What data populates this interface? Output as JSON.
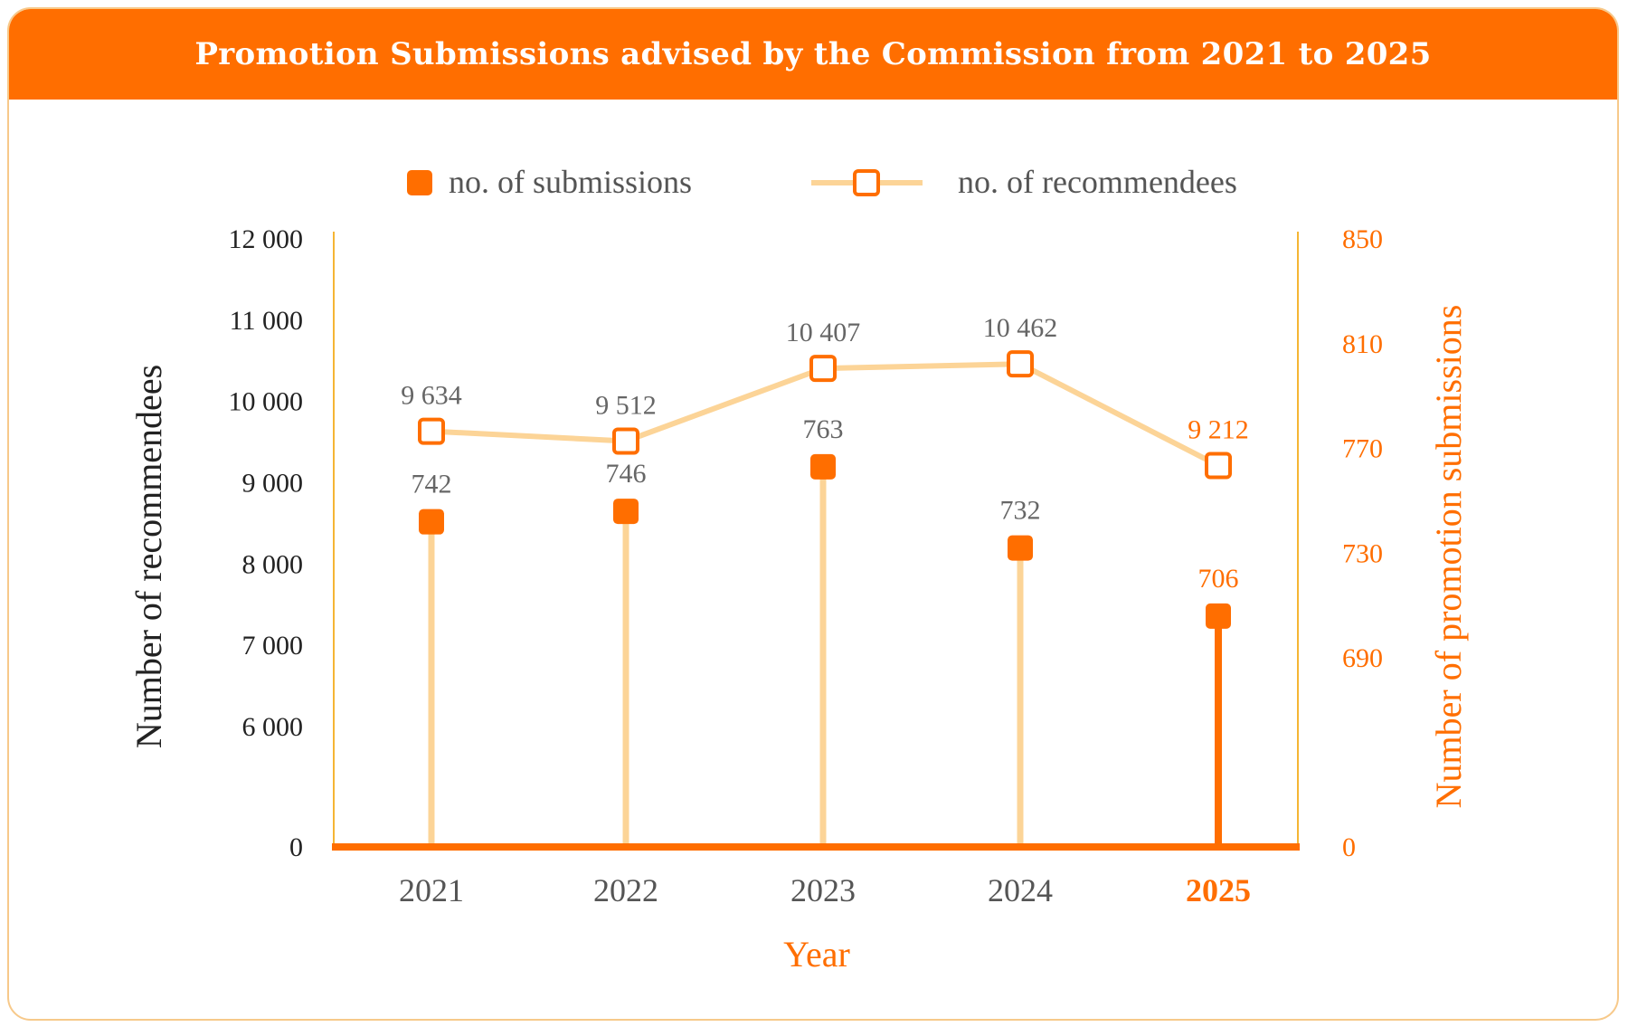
{
  "header": {
    "title": "Promotion Submissions advised by the Commission from 2021 to 2025"
  },
  "colors": {
    "accent": "#ff6e00",
    "light": "#fcd497",
    "axis_line": "#f5b534",
    "left_axis_text": "#222222",
    "label_grey": "#666666"
  },
  "chart_data": {
    "type": "line",
    "title": "Promotion Submissions advised by the Commission from 2021 to 2025",
    "xlabel": "Year",
    "ylabel_left": "Number of recommendees",
    "ylabel_right": "Number of promotion submissions",
    "categories": [
      "2021",
      "2022",
      "2023",
      "2024",
      "2025"
    ],
    "highlight_category": "2025",
    "left_ticks": [
      "0",
      "6 000",
      "7 000",
      "8 000",
      "9 000",
      "10 000",
      "11 000",
      "12 000"
    ],
    "right_ticks": [
      "0",
      "690",
      "730",
      "770",
      "810",
      "850"
    ],
    "left_axis_break": "scale jumps from 0 to 5 500",
    "right_axis_break": "scale jumps from 0 to 650",
    "ylim_left": [
      5500,
      12000
    ],
    "ylim_right": [
      650,
      850
    ],
    "legend": {
      "position": "top",
      "submissions": "no. of submissions",
      "recommendees": "no. of recommendees"
    },
    "series": [
      {
        "name": "no. of submissions",
        "axis": "right",
        "style": "lollipop",
        "values": [
          742,
          746,
          763,
          732,
          706
        ],
        "labels": [
          "742",
          "746",
          "763",
          "732",
          "706"
        ]
      },
      {
        "name": "no. of recommendees",
        "axis": "left",
        "style": "line-open-square",
        "values": [
          9634,
          9512,
          10407,
          10462,
          9212
        ],
        "labels": [
          "9 634",
          "9 512",
          "10 407",
          "10 462",
          "9 212"
        ]
      }
    ]
  }
}
